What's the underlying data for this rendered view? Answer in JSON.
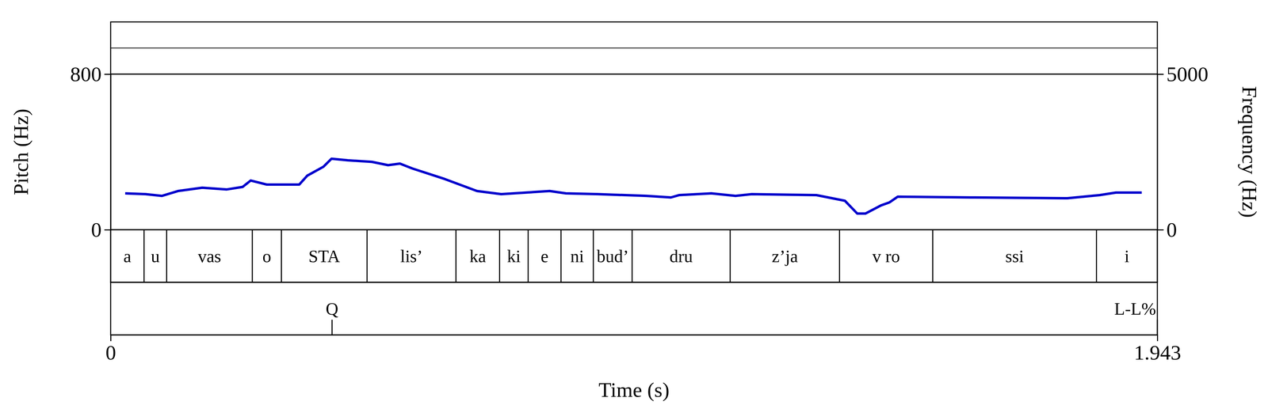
{
  "chart_data": {
    "type": "line",
    "xlabel": "Time (s)",
    "ylabel": "Pitch (Hz)",
    "y2label": "Frequency (Hz)",
    "xlim": [
      0,
      1.943
    ],
    "xticks": [
      0,
      1.943
    ],
    "ylim": [
      0,
      800
    ],
    "yticks": [
      0,
      800
    ],
    "y2lim": [
      0,
      5000
    ],
    "y2ticks": [
      0,
      5000
    ],
    "x": [
      0.027,
      0.065,
      0.095,
      0.125,
      0.17,
      0.215,
      0.245,
      0.26,
      0.29,
      0.32,
      0.35,
      0.365,
      0.395,
      0.41,
      0.44,
      0.485,
      0.515,
      0.537,
      0.56,
      0.62,
      0.68,
      0.725,
      0.815,
      0.845,
      0.905,
      0.995,
      1.04,
      1.055,
      1.115,
      1.16,
      1.19,
      1.31,
      1.363,
      1.386,
      1.401,
      1.43,
      1.446,
      1.461,
      1.596,
      1.776,
      1.836,
      1.866,
      1.914
    ],
    "series": [
      {
        "color": "#0000cc",
        "values": [
          187,
          183,
          174,
          199,
          216,
          207,
          220,
          253,
          232,
          232,
          232,
          278,
          324,
          365,
          357,
          349,
          332,
          340,
          315,
          261,
          199,
          183,
          199,
          187,
          183,
          174,
          166,
          178,
          187,
          174,
          183,
          178,
          149,
          83,
          83,
          125,
          141,
          170,
          166,
          162,
          178,
          191,
          191
        ]
      }
    ],
    "tiers": [
      {
        "boundaries": [
          0,
          0.062,
          0.104,
          0.263,
          0.317,
          0.476,
          0.641,
          0.722,
          0.775,
          0.836,
          0.896,
          0.968,
          1.15,
          1.353,
          1.526,
          1.83,
          1.943
        ],
        "labels": [
          "a",
          "u",
          "vas",
          "o",
          "STA",
          "lis’",
          "ka",
          "ki",
          "e",
          "ni",
          "bud’",
          "dru",
          "z’ja",
          "v ro",
          "ssi",
          "i"
        ]
      },
      {
        "points": [
          0.411,
          1.943
        ],
        "labels": [
          "Q",
          "L-L%"
        ]
      }
    ]
  }
}
